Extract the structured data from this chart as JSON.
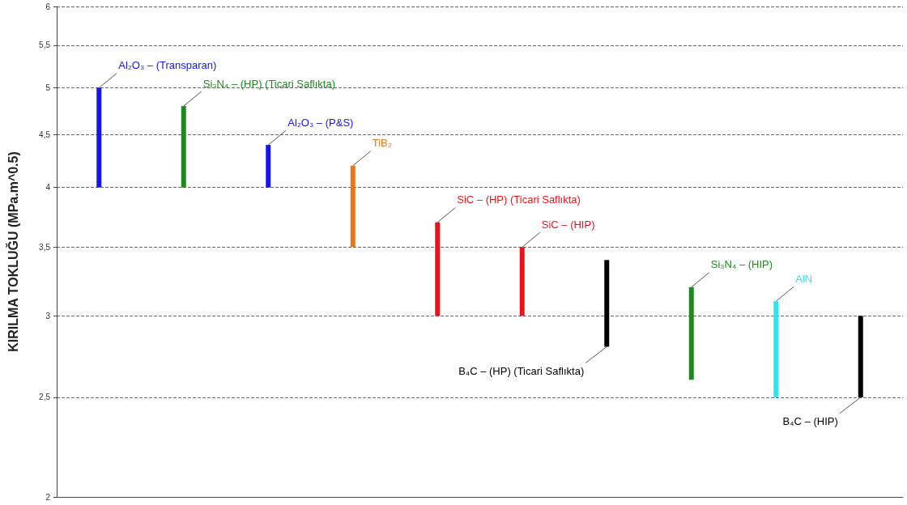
{
  "chart_data": {
    "type": "bar",
    "ylabel": "KIRILMA TOKLUĞU (MPa.m^0.5)",
    "categories": [
      null,
      null,
      null,
      null,
      null,
      null,
      null,
      null,
      null,
      null
    ],
    "base": [
      4,
      4,
      4,
      3.5,
      3,
      3,
      2.8,
      2.6,
      2.5,
      2.5
    ],
    "values": [
      1,
      0.8,
      0.4,
      0.7,
      0.7,
      0.5,
      0.6,
      0.6,
      0.6,
      0.5
    ],
    "colors": [
      "#1414f0",
      "#1e8a1e",
      "#1414f0",
      "#e8761a",
      "#e8141a",
      "#e8141a",
      "#000000",
      "#1e8a1e",
      "#33e2f0",
      "#000000"
    ],
    "log": "y",
    "ylim": [
      2,
      6
    ],
    "yticks": [
      2,
      {
        "value": 2.5,
        "label": "2,5"
      },
      3,
      {
        "value": 3.5,
        "label": "3,5"
      },
      4,
      {
        "value": 4.5,
        "label": "4,5"
      },
      5,
      {
        "value": 5.5,
        "label": "5,5"
      },
      6
    ],
    "grid": "y",
    "annotations": [
      "Al₂O₃ – (Transparan)",
      "Si₃N₄ – (HP) (Ticari Saflıkta)",
      "Al₂O₃ – (P&S)",
      "TiB₂",
      "SiC – (HP) (Ticari Saflıkta)",
      "SiC – (HIP)",
      "B₄C – (HP) (Ticari Saflıkta)",
      "Si₃N₄ – (HIP)",
      "AlN",
      "B₄C – (HIP)"
    ]
  }
}
